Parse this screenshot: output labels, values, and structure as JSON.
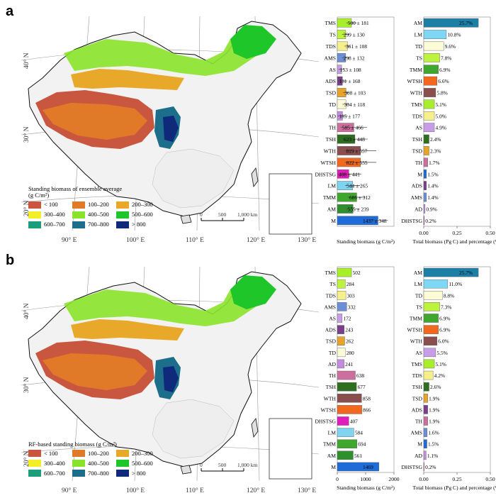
{
  "panels": [
    {
      "letter": "a",
      "legend_title_line1": "Standing biomass of ensemble average",
      "legend_title_line2": "(g C/m²)",
      "scale_ticks": [
        "0",
        "500",
        "1,000 km"
      ]
    },
    {
      "letter": "b",
      "legend_title_line1": "RF-based standing biomass (g C/m²)",
      "legend_title_line2": "",
      "scale_ticks": [
        "0",
        "500",
        "1,000 km"
      ]
    }
  ],
  "map_labels": {
    "lon": [
      "90° E",
      "100° E",
      "110° E",
      "120° E",
      "130° E"
    ],
    "lat": [
      "40° N",
      "30° N",
      "20° N"
    ]
  },
  "legend_classes": [
    {
      "label": "< 100",
      "color": "#c9573f"
    },
    {
      "label": "100–200",
      "color": "#e07a28"
    },
    {
      "label": "200–300",
      "color": "#e8a92a"
    },
    {
      "label": "300–400",
      "color": "#f2ee27"
    },
    {
      "label": "400–500",
      "color": "#8ae32a"
    },
    {
      "label": "500–600",
      "color": "#1ec62a"
    },
    {
      "label": "600–700",
      "color": "#1b9e79"
    },
    {
      "label": "700–800",
      "color": "#1c6e8a"
    },
    {
      "label": "> 800",
      "color": "#0f2a7a"
    }
  ],
  "chart_data": [
    {
      "type": "bar",
      "panel": "a",
      "orientation": "horizontal",
      "categories": [
        "TMS",
        "TS",
        "TDS",
        "AMS",
        "AS",
        "ADS",
        "TSD",
        "TD",
        "AD",
        "TH",
        "TSH",
        "WTH",
        "WTSH",
        "DHSTSG",
        "LM",
        "TMM",
        "AM",
        "M"
      ],
      "values": [
        500,
        299,
        361,
        298,
        153,
        181,
        308,
        304,
        185,
        585,
        623,
        819,
        822,
        408,
        544,
        686,
        555,
        1437
      ],
      "errors": [
        181,
        130,
        108,
        132,
        108,
        168,
        103,
        118,
        177,
        466,
        448,
        557,
        555,
        441,
        265,
        312,
        239,
        348
      ],
      "value_labels": [
        "500 ± 181",
        "299 ± 130",
        "361 ± 108",
        "298 ± 132",
        "153 ± 108",
        "181 ± 168",
        "308 ± 103",
        "304 ± 118",
        "185 ± 177",
        "585 ± 466",
        "623 ± 448",
        "819 ± 557",
        "822 ± 555",
        "408 ± 441",
        "544 ± 265",
        "686 ± 312",
        "555 ± 239",
        "1437 ± 348"
      ],
      "xlabel": "Standing biomass (g C/m²)",
      "xlim": [
        0,
        2000
      ],
      "xticks": [],
      "colors": [
        "#a8ef2a",
        "#bdf23f",
        "#f5f08a",
        "#6b8ed6",
        "#c89ce6",
        "#7a3e8a",
        "#e8a42a",
        "#fbfbd5",
        "#c58be0",
        "#cc6f9e",
        "#2d6e1f",
        "#8a4e4e",
        "#f2681f",
        "#e21bbd",
        "#7fd4f0",
        "#3fa62e",
        "#2f8f2f",
        "#1f6cd8"
      ]
    },
    {
      "type": "bar",
      "panel": "a",
      "orientation": "horizontal",
      "categories": [
        "AM",
        "LM",
        "TD",
        "TS",
        "TMM",
        "WTSH",
        "WTH",
        "TMS",
        "TDS",
        "AS",
        "TSH",
        "TSD",
        "TH",
        "M",
        "ADS",
        "AMS",
        "AD",
        "DHSTSG"
      ],
      "values": [
        0.41,
        0.17,
        0.15,
        0.12,
        0.11,
        0.1,
        0.09,
        0.08,
        0.08,
        0.08,
        0.04,
        0.04,
        0.03,
        0.02,
        0.02,
        0.02,
        0.01,
        0.004
      ],
      "value_labels": [
        "25.7%",
        "10.8%",
        "9.6%",
        "7.8%",
        "6.9%",
        "6.6%",
        "5.8%",
        "5.1%",
        "5.0%",
        "4.9%",
        "2.4%",
        "2.3%",
        "1.7%",
        "1.5%",
        "1.4%",
        "1.4%",
        "0.9%",
        "0.2%"
      ],
      "xlabel": "Total biomass (Pg C) and percentage (%)",
      "xlim": [
        0,
        0.5
      ],
      "xticks": [
        "0.00",
        "0.25",
        "0.50"
      ],
      "colors": [
        "#1b7fa6",
        "#7ed8f5",
        "#fbfbd5",
        "#bdf23f",
        "#3fa62e",
        "#f2681f",
        "#8a4e4e",
        "#a8ef2a",
        "#f5f08a",
        "#c89ce6",
        "#2d6e1f",
        "#e8a42a",
        "#cc6f9e",
        "#1f6cd8",
        "#7a3e8a",
        "#6b8ed6",
        "#c58be0",
        "#e21bbd"
      ]
    },
    {
      "type": "bar",
      "panel": "b",
      "orientation": "horizontal",
      "categories": [
        "TMS",
        "TS",
        "TDS",
        "AMS",
        "AS",
        "ADS",
        "TSD",
        "TD",
        "AD",
        "TH",
        "TSH",
        "WTH",
        "WTSH",
        "DHSTSG",
        "LM",
        "TMM",
        "AM",
        "M"
      ],
      "values": [
        502,
        284,
        303,
        332,
        172,
        243,
        262,
        280,
        241,
        638,
        677,
        858,
        866,
        407,
        584,
        694,
        561,
        1469
      ],
      "value_labels": [
        "502",
        "284",
        "303",
        "332",
        "172",
        "243",
        "262",
        "280",
        "241",
        "638",
        "677",
        "858",
        "866",
        "407",
        "584",
        "694",
        "561",
        "1469"
      ],
      "xlabel": "Standing biomass (g C/m²)",
      "xlim": [
        0,
        2000
      ],
      "xticks": [
        "0",
        "1000",
        "2000"
      ],
      "colors": [
        "#a8ef2a",
        "#bdf23f",
        "#f5f08a",
        "#6b8ed6",
        "#c89ce6",
        "#7a3e8a",
        "#e8a42a",
        "#fbfbd5",
        "#c58be0",
        "#cc6f9e",
        "#2d6e1f",
        "#8a4e4e",
        "#f2681f",
        "#e21bbd",
        "#7fd4f0",
        "#3fa62e",
        "#2f8f2f",
        "#1f6cd8"
      ]
    },
    {
      "type": "bar",
      "panel": "b",
      "orientation": "horizontal",
      "categories": [
        "AM",
        "LM",
        "TD",
        "TS",
        "TMM",
        "WTSH",
        "WTH",
        "AS",
        "TMS",
        "TDS",
        "TSH",
        "TSD",
        "ADS",
        "TH",
        "AMS",
        "M",
        "AD",
        "DHSTSG"
      ],
      "values": [
        0.41,
        0.18,
        0.14,
        0.12,
        0.11,
        0.11,
        0.1,
        0.09,
        0.08,
        0.07,
        0.04,
        0.03,
        0.03,
        0.03,
        0.026,
        0.024,
        0.018,
        0.003
      ],
      "value_labels": [
        "25.7%",
        "11.0%",
        "8.8%",
        "7.3%",
        "6.9%",
        "6.9%",
        "6.0%",
        "5.5%",
        "5.1%",
        "4.2%",
        "2.6%",
        "1.9%",
        "1.9%",
        "1.9%",
        "1.6%",
        "1.5%",
        "1.1%",
        "0.2%"
      ],
      "xlabel": "Total biomass (Pg C) and percentage (%)",
      "xlim": [
        0,
        0.5
      ],
      "xticks": [
        "0.00",
        "0.25",
        "0.50"
      ],
      "colors": [
        "#1b7fa6",
        "#7ed8f5",
        "#fbfbd5",
        "#bdf23f",
        "#3fa62e",
        "#f2681f",
        "#8a4e4e",
        "#c89ce6",
        "#a8ef2a",
        "#f5f08a",
        "#2d6e1f",
        "#e8a42a",
        "#7a3e8a",
        "#cc6f9e",
        "#6b8ed6",
        "#1f6cd8",
        "#c58be0",
        "#e21bbd"
      ]
    }
  ]
}
